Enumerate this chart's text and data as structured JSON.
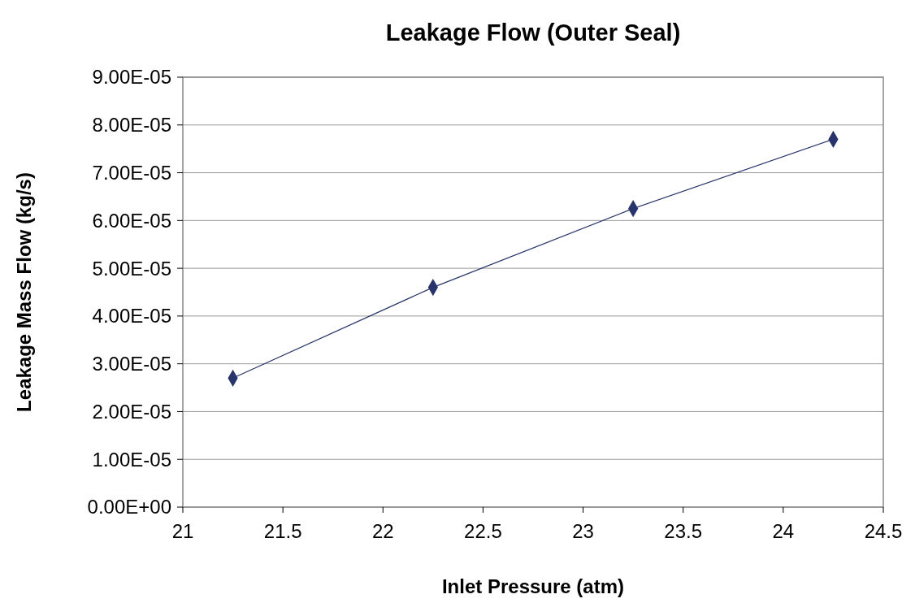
{
  "chart_data": {
    "type": "line",
    "title": "Leakage Flow (Outer Seal)",
    "xlabel": "Inlet Pressure (atm)",
    "ylabel": "Leakage Mass Flow (kg/s)",
    "x": [
      21.25,
      22.25,
      23.25,
      24.25
    ],
    "series": [
      {
        "color": "#27346e",
        "values": [
          2.7e-05,
          4.6e-05,
          6.25e-05,
          7.7e-05
        ]
      }
    ],
    "xlim": [
      21,
      24.5
    ],
    "xticks": [
      21,
      21.5,
      22,
      22.5,
      23,
      23.5,
      24,
      24.5
    ],
    "ylim": [
      0,
      9e-05
    ],
    "yticks": [
      {
        "value": 0,
        "label": "0.00E+00"
      },
      {
        "value": 1e-05,
        "label": "1.00E-05"
      },
      {
        "value": 2e-05,
        "label": "2.00E-05"
      },
      {
        "value": 3e-05,
        "label": "3.00E-05"
      },
      {
        "value": 4e-05,
        "label": "4.00E-05"
      },
      {
        "value": 5e-05,
        "label": "5.00E-05"
      },
      {
        "value": 6e-05,
        "label": "6.00E-05"
      },
      {
        "value": 7e-05,
        "label": "7.00E-05"
      },
      {
        "value": 8e-05,
        "label": "8.00E-05"
      },
      {
        "value": 9e-05,
        "label": "9.00E-05"
      }
    ],
    "grid": "y",
    "marker": "diamond",
    "line_style": "solid"
  }
}
